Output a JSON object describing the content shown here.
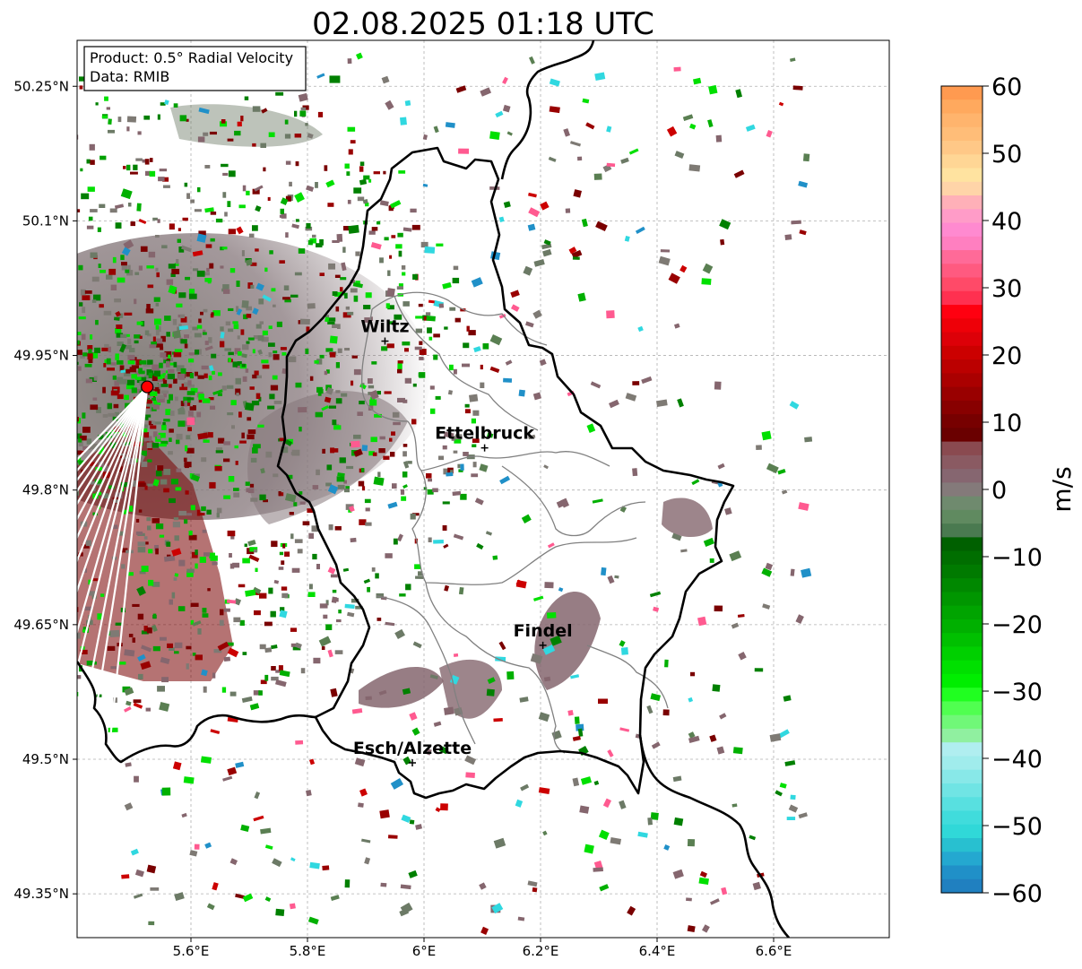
{
  "title": "02.08.2025 01:18 UTC",
  "info_box": {
    "product": "Product: 0.5° Radial Velocity",
    "data": "Data: RMIB"
  },
  "map": {
    "lon_range": [
      5.42,
      6.8
    ],
    "lat_range": [
      49.3,
      50.3
    ],
    "lon_ticks": [
      {
        "value": 5.6,
        "label": "5.6°E"
      },
      {
        "value": 5.8,
        "label": "5.8°E"
      },
      {
        "value": 6.0,
        "label": "6°E"
      },
      {
        "value": 6.2,
        "label": "6.2°E"
      },
      {
        "value": 6.4,
        "label": "6.4°E"
      },
      {
        "value": 6.6,
        "label": "6.6°E"
      }
    ],
    "lat_ticks": [
      {
        "value": 50.25,
        "label": "50.25°N"
      },
      {
        "value": 50.1,
        "label": "50.1°N"
      },
      {
        "value": 49.95,
        "label": "49.95°N"
      },
      {
        "value": 49.8,
        "label": "49.8°N"
      },
      {
        "value": 49.65,
        "label": "49.65°N"
      },
      {
        "value": 49.5,
        "label": "49.5°N"
      },
      {
        "value": 49.35,
        "label": "49.35°N"
      }
    ],
    "gridlines": true,
    "radar_site": {
      "lon": 5.525,
      "lat": 49.915,
      "color": "#ff0000"
    },
    "cities": [
      {
        "name": "Wiltz",
        "lon": 5.933,
        "lat": 49.966
      },
      {
        "name": "Ettelbruck",
        "lon": 6.104,
        "lat": 49.847
      },
      {
        "name": "Findel",
        "lon": 6.204,
        "lat": 49.627
      },
      {
        "name": "Esch/Alzette",
        "lon": 5.98,
        "lat": 49.496
      }
    ]
  },
  "colorbar": {
    "label": "m/s",
    "min": -60,
    "max": 60,
    "ticks": [
      {
        "value": 60,
        "label": "60"
      },
      {
        "value": 50,
        "label": "50"
      },
      {
        "value": 40,
        "label": "40"
      },
      {
        "value": 30,
        "label": "30"
      },
      {
        "value": 20,
        "label": "20"
      },
      {
        "value": 10,
        "label": "10"
      },
      {
        "value": 0,
        "label": "0"
      },
      {
        "value": -10,
        "label": "−10"
      },
      {
        "value": -20,
        "label": "−20"
      },
      {
        "value": -30,
        "label": "−30"
      },
      {
        "value": -40,
        "label": "−40"
      },
      {
        "value": -50,
        "label": "−50"
      },
      {
        "value": -60,
        "label": "−60"
      }
    ],
    "colors_top_to_bottom": [
      "#ff9a50",
      "#ffa95e",
      "#ffb46d",
      "#ffbd78",
      "#ffc887",
      "#ffd695",
      "#ffe3a0",
      "#ffd4a8",
      "#ffb0b8",
      "#ff9cc8",
      "#ff8ad0",
      "#ff7fc0",
      "#ff6a98",
      "#ff5a80",
      "#ff4a68",
      "#ff3050",
      "#ff0010",
      "#ee0008",
      "#dd0008",
      "#cc0000",
      "#bb0000",
      "#aa0000",
      "#990000",
      "#880000",
      "#770000",
      "#6a0000",
      "#8a4a50",
      "#8a5a62",
      "#866670",
      "#847a7a",
      "#6f8a6e",
      "#608a60",
      "#4a7a50",
      "#006000",
      "#006e00",
      "#007a00",
      "#008800",
      "#009600",
      "#00a400",
      "#00b000",
      "#00c000",
      "#00d000",
      "#00e000",
      "#00ee00",
      "#20ff20",
      "#50ff50",
      "#70f878",
      "#90f0a0",
      "#b0eef0",
      "#a0ecec",
      "#88e8e8",
      "#70e4e4",
      "#58e0e0",
      "#40dcdc",
      "#30d8d8",
      "#28c0d0",
      "#24a8d0",
      "#2090c8",
      "#2080c0"
    ]
  }
}
